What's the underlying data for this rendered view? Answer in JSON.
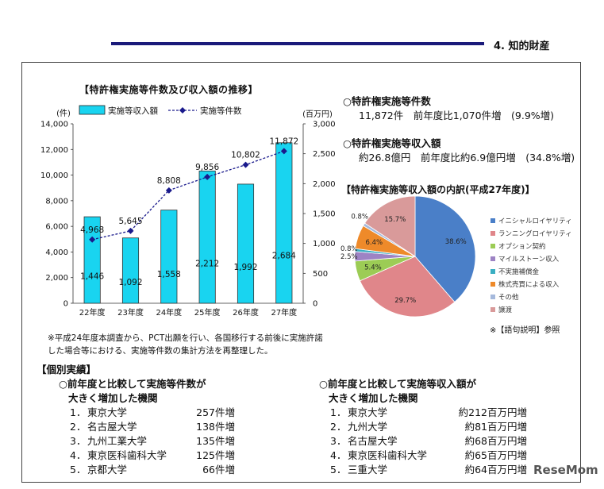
{
  "header": {
    "section": "4. 知的財産"
  },
  "chart_title": "【特許権実施等件数及び収入額の推移】",
  "chart_data": [
    {
      "type": "bar",
      "title": "【特許権実施等件数及び収入額の推移】",
      "categories": [
        "22年度",
        "23年度",
        "24年度",
        "25年度",
        "26年度",
        "27年度"
      ],
      "ylabel_left": "(件)",
      "ylabel_right": "(百万円)",
      "ylim_left": [
        0,
        14000
      ],
      "ylim_right": [
        0,
        3000
      ],
      "yticks_left": [
        "0",
        "2,000",
        "4,000",
        "6,000",
        "8,000",
        "10,000",
        "12,000",
        "14,000"
      ],
      "yticks_right": [
        "0",
        "500",
        "1,000",
        "1,500",
        "2,000",
        "2,500",
        "3,000"
      ],
      "series": [
        {
          "name": "実施等収入額",
          "kind": "bar",
          "axis": "right",
          "values": [
            1446,
            1092,
            1558,
            2212,
            1992,
            2684
          ],
          "labels": [
            "1,446",
            "1,092",
            "1,558",
            "2,212",
            "1,992",
            "2,684"
          ],
          "color": "#19d4f0"
        },
        {
          "name": "実施等件数",
          "kind": "line",
          "axis": "left",
          "values": [
            4968,
            5645,
            8808,
            9856,
            10802,
            11872
          ],
          "labels": [
            "4,968",
            "5,645",
            "8,808",
            "9,856",
            "10,802",
            "11,872"
          ],
          "color": "#1a1a8c"
        }
      ]
    },
    {
      "type": "pie",
      "title": "【特許権実施等収入額の内訳(平成27年度)】",
      "slices": [
        {
          "name": "イニシャルロイヤリティ",
          "value": 38.6,
          "label": "38.6%",
          "color": "#4a7fc8"
        },
        {
          "name": "ランニングロイヤリティ",
          "value": 29.7,
          "label": "29.7%",
          "color": "#e0868a"
        },
        {
          "name": "オプション契約",
          "value": 5.4,
          "label": "5.4%",
          "color": "#9ccc55"
        },
        {
          "name": "マイルストーン収入",
          "value": 2.5,
          "label": "2.5%",
          "color": "#9d83c4"
        },
        {
          "name": "不実施補償金",
          "value": 0.8,
          "label": "0.8%",
          "color": "#3aaec2"
        },
        {
          "name": "株式売買による収入",
          "value": 6.4,
          "label": "6.4%",
          "color": "#ee8a2a"
        },
        {
          "name": "その他",
          "value": 0.8,
          "label": "0.8%",
          "color": "#a5b9dc"
        },
        {
          "name": "譲渡",
          "value": 15.7,
          "label": "15.7%",
          "color": "#d99a9a"
        }
      ]
    }
  ],
  "pie_title": "【特許権実施等収入額の内訳(平成27年度)】",
  "pie_note": "※【語句説明】参照",
  "summary": {
    "count_heading": "○特許権実施等件数",
    "count_text": "11,872件　前年度比1,070件増　(9.9%増)",
    "income_heading": "○特許権実施等収入額",
    "income_text": "約26.8億円　前年度比約6.9億円増　(34.8%増)"
  },
  "note": {
    "line1": "※平成24年度本調査から、PCT出願を行い、各国移行する前後に実施許諾",
    "line2": "した場合等における、実施等件数の集計方法を再整理した。"
  },
  "individual": {
    "heading": "【個別実績】",
    "left": {
      "heading1": "○前年度と比較して実施等件数が",
      "heading2": "大きく増加した機関",
      "rows": [
        {
          "rank": "1．",
          "name": "東京大学",
          "value": "257件増"
        },
        {
          "rank": "2．",
          "name": "名古屋大学",
          "value": "138件増"
        },
        {
          "rank": "3．",
          "name": "九州工業大学",
          "value": "135件増"
        },
        {
          "rank": "4．",
          "name": "東京医科歯科大学",
          "value": "125件増"
        },
        {
          "rank": "5．",
          "name": "京都大学",
          "value": "66件増"
        }
      ]
    },
    "right": {
      "heading1": "○前年度と比較して実施等収入額が",
      "heading2": "大きく増加した機関",
      "rows": [
        {
          "rank": "1．",
          "name": "東京大学",
          "value": "約212百万円増"
        },
        {
          "rank": "2．",
          "name": "九州大学",
          "value": "約81百万円増"
        },
        {
          "rank": "3．",
          "name": "名古屋大学",
          "value": "約68百万円増"
        },
        {
          "rank": "4．",
          "name": "東京医科歯科大学",
          "value": "約65百万円増"
        },
        {
          "rank": "5．",
          "name": "三重大学",
          "value": "約64百万円増"
        }
      ]
    }
  },
  "watermark": "ReseMom"
}
